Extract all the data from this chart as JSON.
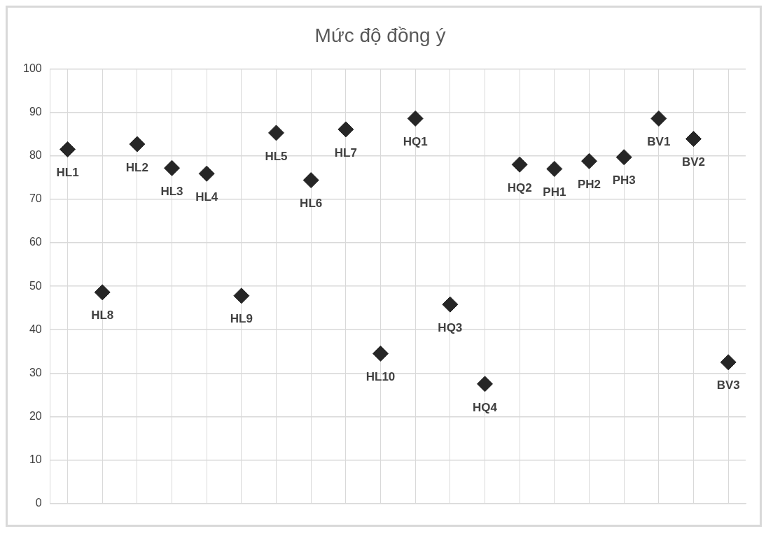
{
  "chart_data": {
    "type": "scatter",
    "title": "Mức độ đồng ý",
    "categories": [
      null,
      null,
      null,
      null,
      null,
      null,
      null,
      null,
      null,
      null,
      null,
      null,
      null,
      null,
      null,
      null,
      null,
      null,
      null,
      null
    ],
    "series": [
      {
        "color": "#262626",
        "values": [
          81.5,
          48.6,
          82.7,
          77.2,
          75.9,
          47.8,
          85.3,
          74.4,
          86.1,
          34.5,
          88.6,
          45.8,
          27.5,
          78,
          77,
          78.8,
          79.7,
          88.6,
          83.9,
          32.5
        ]
      }
    ],
    "ylim": [
      0,
      100
    ],
    "yticks": [
      0,
      10,
      20,
      30,
      40,
      50,
      60,
      70,
      80,
      90,
      100
    ],
    "grid": true,
    "legend": false,
    "marker": "diamond",
    "annotations": [
      "HL1",
      "HL8",
      "HL2",
      "HL3",
      "HL4",
      "HL9",
      "HL5",
      "HL6",
      "HL7",
      "HL10",
      "HQ1",
      "HQ3",
      "HQ4",
      "HQ2",
      "PH1",
      "PH2",
      "PH3",
      "BV1",
      "BV2",
      "BV3"
    ]
  }
}
